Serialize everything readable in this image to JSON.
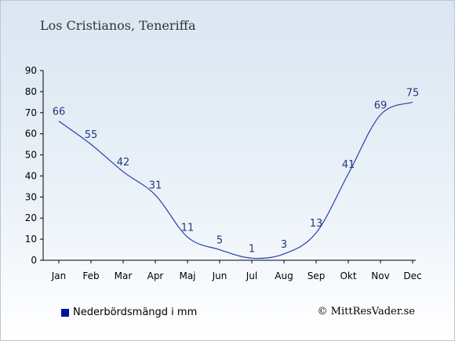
{
  "chart_data": {
    "type": "line",
    "title": "Los Cristianos, Teneriffa",
    "categories": [
      "Jan",
      "Feb",
      "Mar",
      "Apr",
      "Maj",
      "Jun",
      "Jul",
      "Aug",
      "Sep",
      "Okt",
      "Nov",
      "Dec"
    ],
    "series": [
      {
        "name": "Nederbördsmängd i mm",
        "values": [
          66,
          55,
          42,
          31,
          11,
          5,
          1,
          3,
          13,
          41,
          69,
          75
        ],
        "color": "#2a3fb0"
      }
    ],
    "ylim": [
      0,
      90
    ],
    "yticks": [
      0,
      10,
      20,
      30,
      40,
      50,
      60,
      70,
      80,
      90
    ],
    "grid": false,
    "legend_position": "bottom-left"
  },
  "legend": {
    "label": "Nederbördsmängd i mm",
    "swatch_color": "#0010a0"
  },
  "credit": "© MittResVader.se"
}
